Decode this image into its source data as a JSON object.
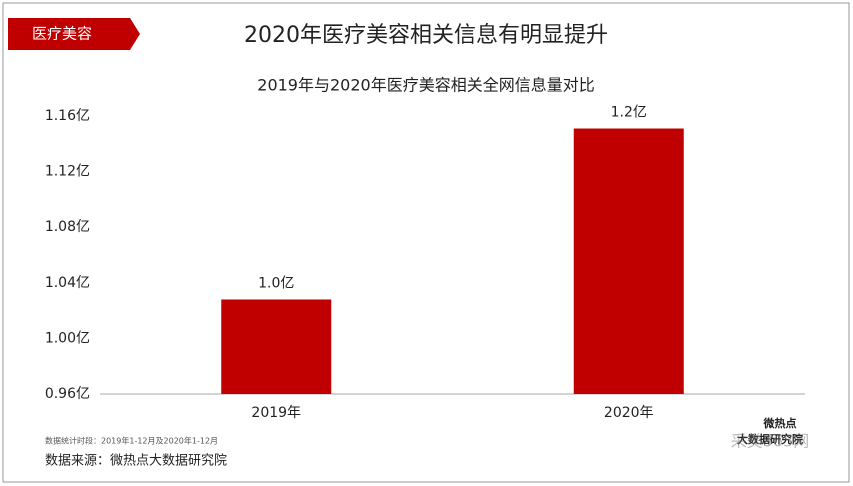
{
  "badge": "医疗美容",
  "header_title": "2020年医疗美容相关信息有明显提升",
  "chart_data": {
    "type": "bar",
    "title": "2019年与2020年医疗美容相关全网信息量对比",
    "categories": [
      "2019年",
      "2020年"
    ],
    "values": [
      1.028,
      1.151
    ],
    "value_labels": [
      "1.0亿",
      "1.2亿"
    ],
    "color": "#c00000",
    "ylim": [
      0.96,
      1.16
    ],
    "yticks": [
      {
        "value": 0.96,
        "label": "0.96亿"
      },
      {
        "value": 1.0,
        "label": "1.00亿"
      },
      {
        "value": 1.04,
        "label": "1.04亿"
      },
      {
        "value": 1.08,
        "label": "1.08亿"
      },
      {
        "value": 1.12,
        "label": "1.12亿"
      },
      {
        "value": 1.16,
        "label": "1.16亿"
      }
    ],
    "grid": false
  },
  "footnote": "数据统计时段：2019年1-12月及2020年1-12月",
  "source": "数据来源：微热点大数据研究院",
  "logo": [
    "微热点",
    "大数据研究院"
  ],
  "watermark": "采美365网"
}
